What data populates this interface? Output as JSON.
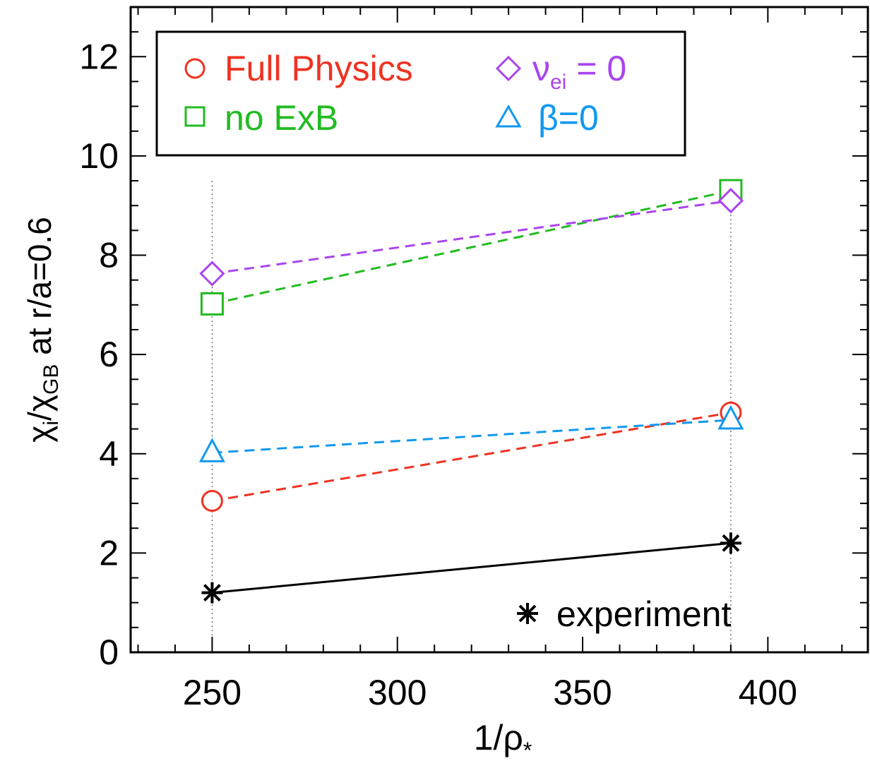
{
  "chart_data": {
    "type": "line",
    "xlabel": "1/ρ",
    "xlabel_sub": "*",
    "ylabel_parts": {
      "chi": "χ",
      "sub_i": "i",
      "slash": "/",
      "chi2": "χ",
      "sub_gb": "GB",
      "rest": " at r/a=0.6"
    },
    "xlim": [
      228,
      427
    ],
    "ylim": [
      0,
      13
    ],
    "x_ticks": [
      {
        "value": 250,
        "label": "250"
      },
      {
        "value": 300,
        "label": "300"
      },
      {
        "value": 350,
        "label": "350"
      },
      {
        "value": 400,
        "label": "400"
      }
    ],
    "y_ticks": [
      {
        "value": 0,
        "label": "0"
      },
      {
        "value": 2,
        "label": "2"
      },
      {
        "value": 4,
        "label": "4"
      },
      {
        "value": 6,
        "label": "6"
      },
      {
        "value": 8,
        "label": "8"
      },
      {
        "value": 10,
        "label": "10"
      },
      {
        "value": 12,
        "label": "12"
      }
    ],
    "reference_lines_x": [
      250,
      390
    ],
    "series": [
      {
        "name": "Full Physics",
        "key": "full-physics",
        "marker": "circle",
        "color": "#ee3322",
        "dash": true,
        "x": [
          250,
          390
        ],
        "y": [
          3.05,
          4.83
        ]
      },
      {
        "name": "no ExB",
        "key": "no-exb",
        "marker": "square",
        "color": "#22bb22",
        "dash": true,
        "x": [
          250,
          390
        ],
        "y": [
          7.02,
          9.3
        ]
      },
      {
        "name": "ν = 0",
        "key": "nu-ei-zero",
        "marker": "diamond",
        "color": "#aa44ee",
        "dash": true,
        "x": [
          250,
          390
        ],
        "y": [
          7.63,
          9.1
        ]
      },
      {
        "name": "β=0",
        "key": "beta-zero",
        "marker": "triangle",
        "color": "#1199ee",
        "dash": true,
        "x": [
          250,
          390
        ],
        "y": [
          4.02,
          4.68
        ]
      },
      {
        "name": "experiment",
        "key": "experiment",
        "marker": "asterisk",
        "color": "#000000",
        "dash": false,
        "x": [
          250,
          390
        ],
        "y": [
          1.2,
          2.2
        ]
      }
    ],
    "legend": {
      "position": "top-left",
      "nu_label": {
        "symbol": "ν",
        "sub": "ei",
        "rest": " = 0"
      },
      "experiment_position": "bottom-right"
    }
  }
}
